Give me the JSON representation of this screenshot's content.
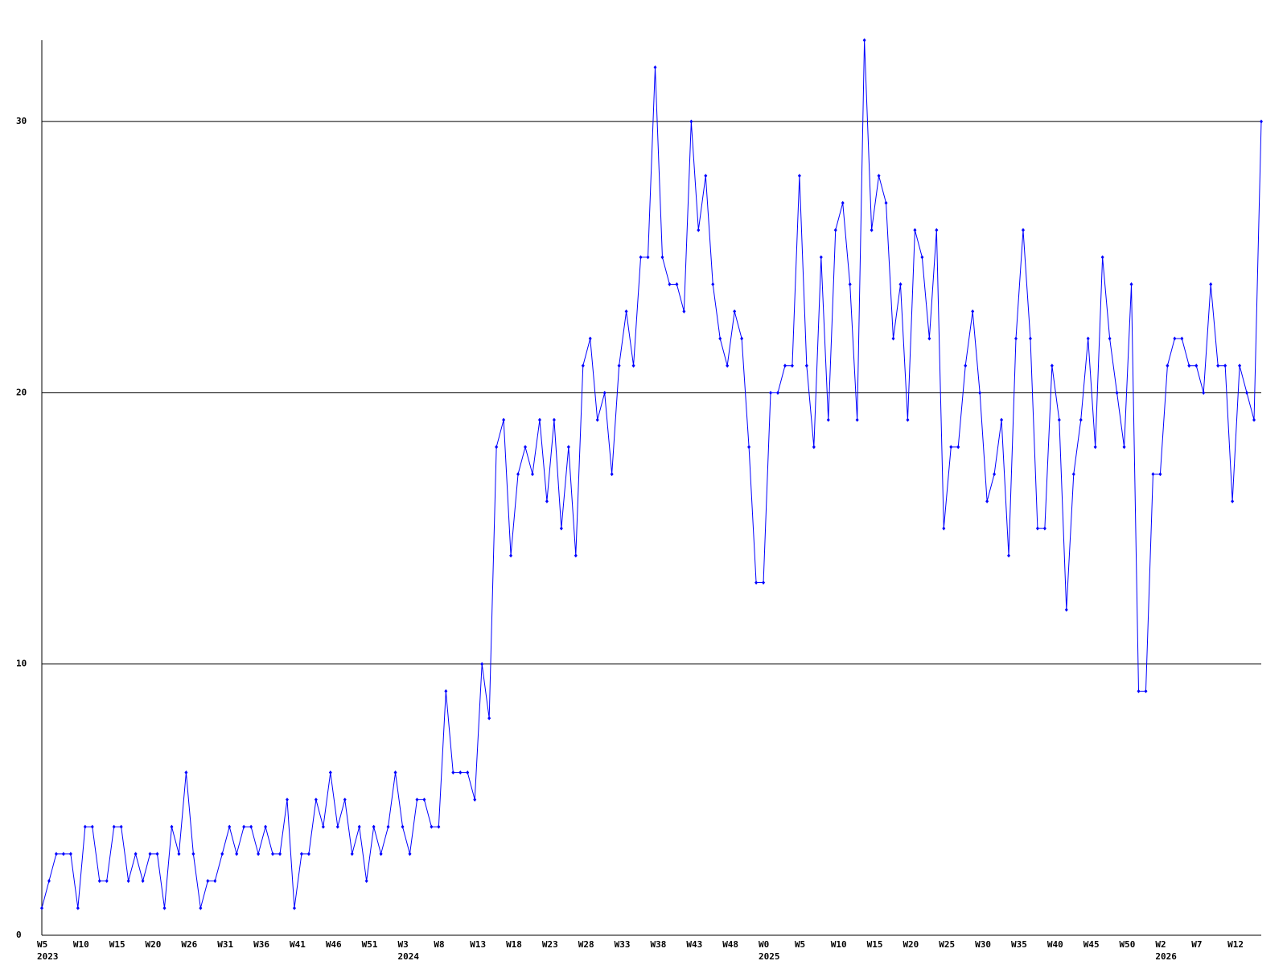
{
  "chart_data": {
    "type": "line",
    "categories": [
      "W5",
      null,
      null,
      null,
      null,
      "W10",
      null,
      null,
      null,
      null,
      "W15",
      null,
      null,
      null,
      null,
      "W20",
      null,
      null,
      null,
      null,
      "W26",
      null,
      null,
      null,
      null,
      "W31",
      null,
      null,
      null,
      null,
      "W36",
      null,
      null,
      null,
      null,
      "W41",
      null,
      null,
      null,
      null,
      "W46",
      null,
      null,
      null,
      null,
      "W51",
      null,
      null,
      null,
      null,
      "W3",
      null,
      null,
      null,
      null,
      "W8",
      null,
      null,
      null,
      null,
      "W13",
      null,
      null,
      null,
      null,
      "W18",
      null,
      null,
      null,
      null,
      "W23",
      null,
      null,
      null,
      null,
      "W28",
      null,
      null,
      null,
      null,
      "W33",
      null,
      null,
      null,
      null,
      "W38",
      null,
      null,
      null,
      null,
      "W43",
      null,
      null,
      null,
      null,
      "W48",
      null,
      null,
      null,
      null,
      "W0",
      null,
      null,
      null,
      null,
      "W5",
      null,
      null,
      null,
      null,
      "W10",
      null,
      null,
      null,
      null,
      "W15",
      null,
      null,
      null,
      null,
      "W20",
      null,
      null,
      null,
      null,
      "W25",
      null,
      null,
      null,
      null,
      "W30",
      null,
      null,
      null,
      null,
      "W35",
      null,
      null,
      null,
      null,
      "W40",
      null,
      null,
      null,
      null,
      "W45",
      null,
      null,
      null,
      null,
      "W50",
      null,
      null,
      null,
      null,
      "W2",
      null,
      null,
      null,
      null,
      "W7",
      null,
      null,
      null,
      null,
      "W12",
      null,
      null,
      null,
      null
    ],
    "years": [
      "2023",
      null,
      null,
      null,
      null,
      null,
      null,
      null,
      null,
      null,
      null,
      null,
      null,
      null,
      null,
      null,
      null,
      null,
      null,
      null,
      null,
      null,
      null,
      null,
      null,
      null,
      null,
      null,
      null,
      null,
      null,
      null,
      null,
      null,
      null,
      null,
      null,
      null,
      null,
      null,
      null,
      null,
      null,
      null,
      null,
      null,
      null,
      null,
      null,
      null,
      "2024",
      null,
      null,
      null,
      null,
      null,
      null,
      null,
      null,
      null,
      null,
      null,
      null,
      null,
      null,
      null,
      null,
      null,
      null,
      null,
      null,
      null,
      null,
      null,
      null,
      null,
      null,
      null,
      null,
      null,
      null,
      null,
      null,
      null,
      null,
      null,
      null,
      null,
      null,
      null,
      null,
      null,
      null,
      null,
      null,
      null,
      null,
      null,
      null,
      null,
      "2025",
      null,
      null,
      null,
      null,
      null,
      null,
      null,
      null,
      null,
      null,
      null,
      null,
      null,
      null,
      null,
      null,
      null,
      null,
      null,
      null,
      null,
      null,
      null,
      null,
      null,
      null,
      null,
      null,
      null,
      null,
      null,
      null,
      null,
      null,
      null,
      null,
      null,
      null,
      null,
      null,
      null,
      null,
      null,
      null,
      null,
      null,
      null,
      null,
      null,
      null,
      null,
      null,
      null,
      null,
      "2026",
      null,
      null,
      null,
      null,
      null,
      null,
      null,
      null,
      null,
      null,
      null,
      null,
      null,
      null
    ],
    "values": [
      1,
      2,
      3,
      3,
      3,
      1,
      4,
      4,
      2,
      2,
      4,
      4,
      2,
      3,
      2,
      3,
      3,
      1,
      4,
      3,
      6,
      3,
      1,
      2,
      2,
      3,
      4,
      3,
      4,
      4,
      3,
      4,
      3,
      3,
      5,
      1,
      3,
      3,
      5,
      4,
      6,
      4,
      5,
      3,
      4,
      2,
      4,
      3,
      4,
      6,
      4,
      3,
      5,
      5,
      4,
      4,
      9,
      6,
      6,
      6,
      5,
      10,
      8,
      18,
      19,
      14,
      17,
      18,
      17,
      19,
      16,
      19,
      15,
      18,
      14,
      21,
      22,
      19,
      20,
      17,
      21,
      23,
      21,
      25,
      25,
      32,
      25,
      24,
      24,
      23,
      30,
      26,
      28,
      24,
      22,
      21,
      23,
      22,
      18,
      13,
      13,
      20,
      20,
      21,
      21,
      28,
      21,
      18,
      25,
      19,
      26,
      27,
      24,
      19,
      33,
      26,
      28,
      27,
      22,
      24,
      19,
      26,
      25,
      22,
      26,
      15,
      18,
      18,
      21,
      23,
      20,
      16,
      17,
      19,
      14,
      22,
      26,
      22,
      15,
      15,
      21,
      19,
      12,
      17,
      19,
      22,
      18,
      25,
      22,
      20,
      18,
      24,
      9,
      9,
      17,
      17,
      21,
      22,
      22,
      21,
      21,
      20,
      24,
      21,
      21,
      16,
      21,
      20,
      19,
      30
    ],
    "color": "#0000ff",
    "ylim": [
      0,
      33
    ],
    "yticks": [
      0,
      10,
      20,
      30
    ],
    "grid": true
  }
}
